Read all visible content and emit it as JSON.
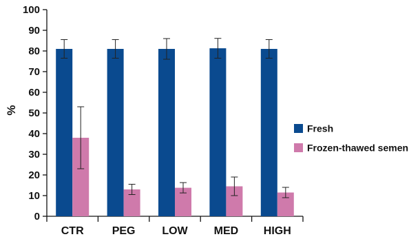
{
  "chart_data": {
    "type": "bar",
    "categories": [
      "CTR",
      "PEG",
      "LOW",
      "MED",
      "HIGH"
    ],
    "series": [
      {
        "name": "Fresh",
        "color": "#0a4a8f",
        "values": [
          81,
          81,
          81,
          81.3,
          81
        ],
        "errors": [
          4.5,
          4.5,
          5,
          4.8,
          4.5
        ]
      },
      {
        "name": "Frozen-thawed semen",
        "color": "#cf7aab",
        "values": [
          38,
          13,
          13.8,
          14.5,
          11.5
        ],
        "errors": [
          15,
          2.5,
          2.5,
          4.5,
          2.5
        ]
      }
    ],
    "title": "",
    "xlabel": "",
    "ylabel": "%",
    "ylim": [
      0,
      100
    ],
    "yticks": [
      0,
      10,
      20,
      30,
      40,
      50,
      60,
      70,
      80,
      90,
      100
    ],
    "grid": false,
    "legend_position": "right"
  }
}
